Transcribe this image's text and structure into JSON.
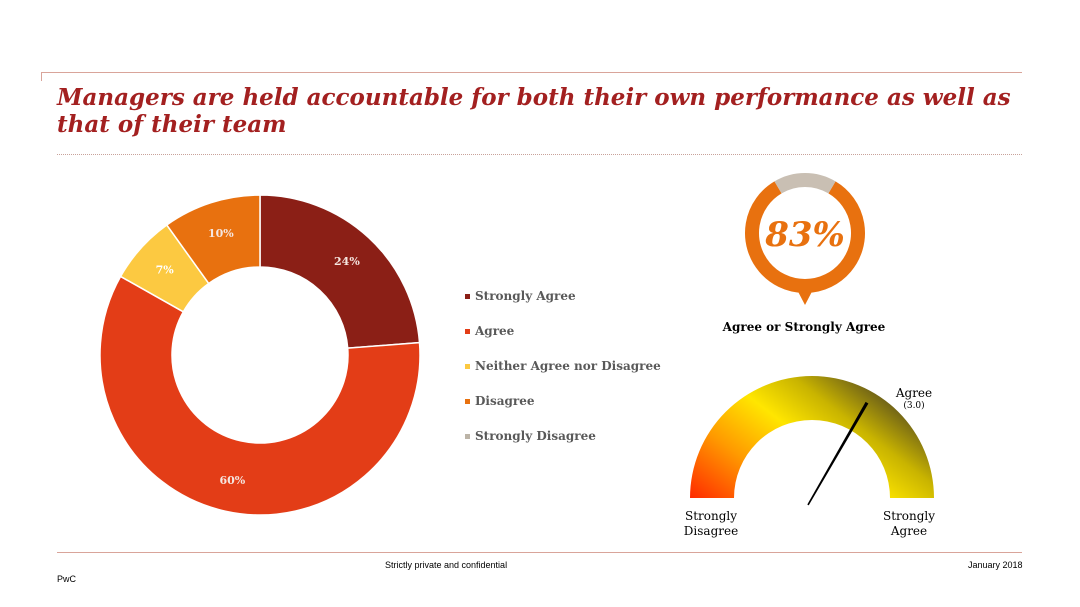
{
  "title": "Managers are held accountable for both their own performance as well as that of their team",
  "chart_data": [
    {
      "type": "pie",
      "variant": "donut",
      "title": "",
      "categories": [
        "Strongly Agree",
        "Agree",
        "Neither Agree nor Disagree",
        "Disagree",
        "Strongly Disagree"
      ],
      "values": [
        24,
        60,
        7,
        10,
        0
      ],
      "data_labels": [
        "24%",
        "60%",
        "7%",
        "10%",
        ""
      ],
      "colors": [
        "#8b1f16",
        "#e33d17",
        "#fcc941",
        "#e8710f",
        "#bcb4a7"
      ],
      "legend": "right"
    },
    {
      "type": "pie",
      "variant": "ring-indicator",
      "value": 83,
      "value_label": "83%",
      "caption": "Agree or Strongly Agree",
      "colors": {
        "fill": "#e8710f",
        "remainder": "#c9bfb3",
        "text": "#e8710f"
      }
    },
    {
      "type": "gauge",
      "scale_min": 1,
      "scale_max": 4,
      "value": 3.0,
      "needle_label": "Agree",
      "needle_value_label": "(3.0)",
      "min_label": [
        "Strongly",
        "Disagree"
      ],
      "max_label": [
        "Strongly",
        "Agree"
      ],
      "colors": {
        "low": "#ff2a00",
        "mid": "#ffe600",
        "high": "#4f4520"
      }
    }
  ],
  "footer": {
    "center": "Strictly private and confidential",
    "right": "January 2018",
    "left": "PwC"
  }
}
